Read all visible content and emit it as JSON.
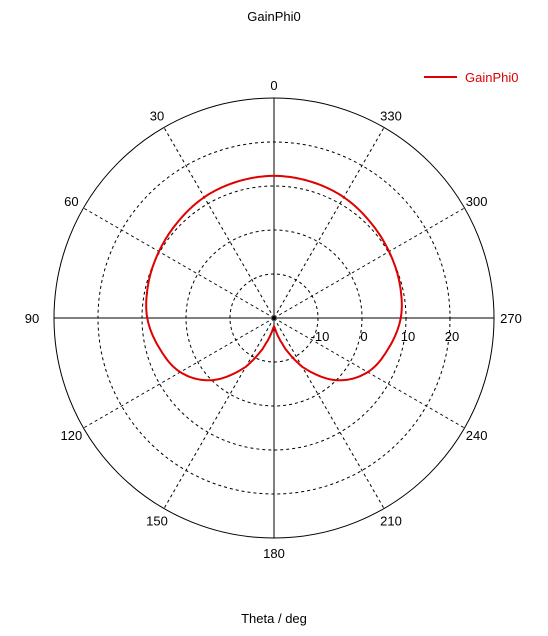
{
  "chart_data": {
    "type": "polar-line",
    "title": "GainPhi0",
    "xlabel": "Theta / deg",
    "radial_range": [
      -20,
      30
    ],
    "radial_ticks": [
      -10,
      0,
      10,
      20
    ],
    "radial_tick_labels": [
      "-10",
      "0",
      "10",
      "20"
    ],
    "angular_ticks": [
      0,
      30,
      60,
      90,
      120,
      150,
      180,
      210,
      240,
      270,
      300,
      330
    ],
    "angular_tick_labels": [
      "0",
      "30",
      "60",
      "90",
      "120",
      "150",
      "180",
      "210",
      "240",
      "270",
      "300",
      "330"
    ],
    "angular_direction": "counterclockwise",
    "zero_location": "top",
    "grid": true,
    "legend": "top-right",
    "series": [
      {
        "name": "GainPhi0",
        "color": "#e00000",
        "theta": [
          0,
          15,
          30,
          45,
          60,
          75,
          90,
          105,
          120,
          135,
          150,
          160,
          165,
          170,
          175,
          180,
          185,
          190,
          195,
          200,
          210,
          225,
          240,
          255,
          270,
          285,
          300,
          315,
          330,
          345,
          360
        ],
        "r": [
          12.3,
          12.1,
          11.7,
          10.9,
          10.2,
          9.6,
          8.8,
          6.9,
          4.6,
          0.0,
          -7.2,
          -12.6,
          -14.9,
          -16.5,
          -17.6,
          -18.0,
          -17.6,
          -16.5,
          -14.9,
          -12.6,
          -7.2,
          0.0,
          4.6,
          6.9,
          8.8,
          9.6,
          10.2,
          10.9,
          11.7,
          12.1,
          12.3
        ]
      }
    ]
  }
}
